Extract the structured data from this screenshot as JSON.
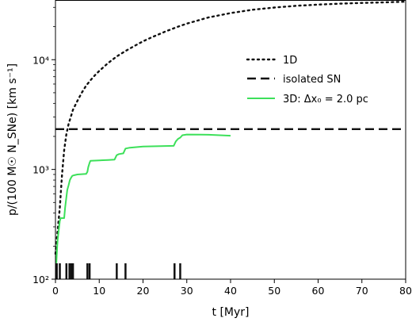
{
  "chart_data": {
    "type": "line",
    "xlabel": "t [Myr]",
    "ylabel": "p/(100 M☉ N_SNe) [km s⁻¹]",
    "xlim": [
      0,
      80
    ],
    "ylim": [
      100,
      35000
    ],
    "yscale": "log",
    "x_ticks": [
      0,
      10,
      20,
      30,
      40,
      50,
      60,
      70,
      80
    ],
    "x_tick_labels": [
      "0",
      "10",
      "20",
      "30",
      "40",
      "50",
      "60",
      "70",
      "80"
    ],
    "y_ticks": [
      100,
      1000,
      10000
    ],
    "y_tick_labels": [
      "10²",
      "10³",
      "10⁴"
    ],
    "grid": false,
    "legend_position": "top-right",
    "series": [
      {
        "name": "1D",
        "style": "dotted",
        "color": "#111111",
        "x": [
          0,
          0.5,
          1,
          1.5,
          2,
          2.5,
          3,
          3.5,
          4,
          5,
          6,
          7,
          8,
          9,
          10,
          12,
          14,
          16,
          18,
          20,
          22,
          25,
          28,
          30,
          35,
          40,
          45,
          50,
          55,
          60,
          65,
          70,
          75,
          80
        ],
        "y": [
          170,
          280,
          450,
          900,
          1500,
          2100,
          2600,
          3000,
          3500,
          4200,
          5000,
          5800,
          6500,
          7200,
          7900,
          9300,
          10700,
          12000,
          13300,
          14700,
          16000,
          18000,
          20000,
          21300,
          24300,
          26600,
          28500,
          29900,
          31000,
          31800,
          32400,
          32900,
          33300,
          33800
        ]
      },
      {
        "name": "isolated SN",
        "style": "dashed",
        "color": "#111111",
        "x": [
          0,
          80
        ],
        "y": [
          2330,
          2330
        ]
      },
      {
        "name": "3D: Δx₀ = 2.0 pc",
        "style": "solid",
        "color": "#3de05a",
        "x": [
          0.2,
          0.4,
          0.5,
          1.0,
          1.2,
          2.0,
          2.2,
          2.5,
          2.7,
          3.0,
          3.3,
          3.5,
          3.8,
          4.0,
          4.5,
          5.0,
          6.0,
          7.0,
          7.3,
          7.5,
          7.8,
          8.0,
          10,
          12,
          13.5,
          14,
          14.5,
          15.5,
          16,
          17,
          20,
          24,
          27,
          27.5,
          28,
          28.5,
          29,
          30,
          35,
          40
        ],
        "y": [
          140,
          200,
          230,
          340,
          360,
          360,
          450,
          560,
          650,
          720,
          800,
          830,
          870,
          880,
          890,
          900,
          905,
          910,
          950,
          1050,
          1150,
          1200,
          1210,
          1220,
          1230,
          1350,
          1380,
          1400,
          1550,
          1580,
          1620,
          1630,
          1640,
          1800,
          1900,
          1950,
          2050,
          2080,
          2070,
          2030
        ]
      }
    ],
    "sn_event_times": [
      0.3,
      1.0,
      2.5,
      3.2,
      3.6,
      4.0,
      7.3,
      7.8,
      14.0,
      16.0,
      27.2,
      28.5
    ],
    "sn_marker_color": "#111111"
  }
}
